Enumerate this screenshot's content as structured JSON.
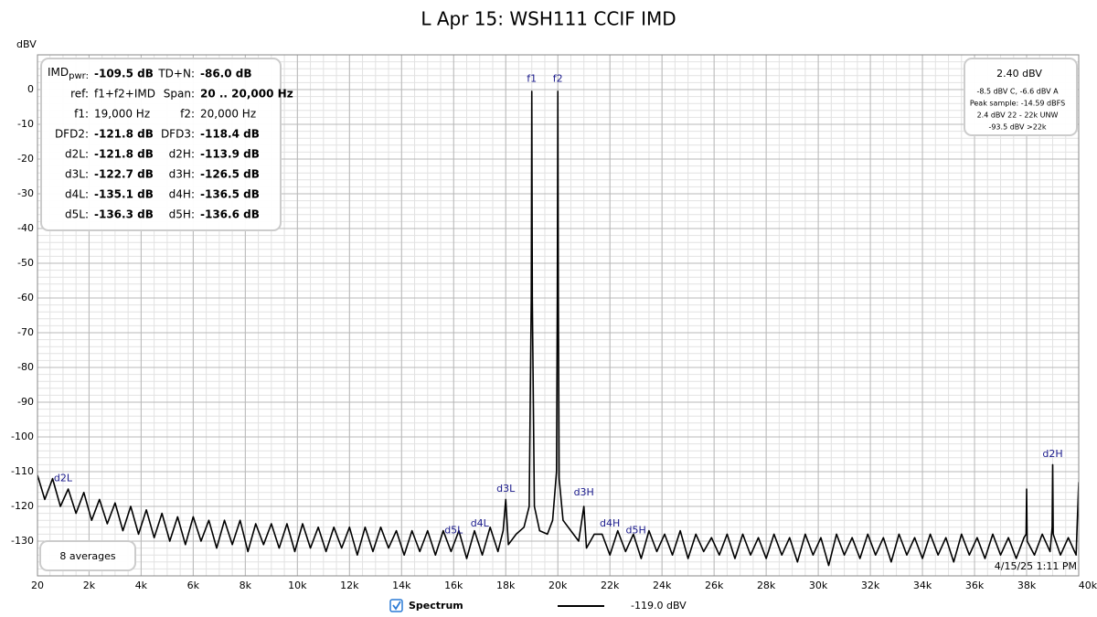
{
  "chart_data": {
    "type": "line",
    "title": "L Apr 15: WSH111 CCIF IMD",
    "y_label": "dBV",
    "xlim": [
      20,
      40000
    ],
    "ylim": [
      -140,
      10
    ],
    "xticks": [
      20,
      {
        "value": 2000,
        "label": "2k"
      },
      {
        "value": 4000,
        "label": "4k"
      },
      {
        "value": 6000,
        "label": "6k"
      },
      {
        "value": 8000,
        "label": "8k"
      },
      {
        "value": 10000,
        "label": "10k"
      },
      {
        "value": 12000,
        "label": "12k"
      },
      {
        "value": 14000,
        "label": "14k"
      },
      {
        "value": 16000,
        "label": "16k"
      },
      {
        "value": 18000,
        "label": "18k"
      },
      {
        "value": 20000,
        "label": "20k"
      },
      {
        "value": 22000,
        "label": "22k"
      },
      {
        "value": 24000,
        "label": "24k"
      },
      {
        "value": 26000,
        "label": "26k"
      },
      {
        "value": 28000,
        "label": "28k"
      },
      {
        "value": 30000,
        "label": "30k"
      },
      {
        "value": 32000,
        "label": "32k"
      },
      {
        "value": 34000,
        "label": "34k"
      },
      {
        "value": 36000,
        "label": "36k"
      },
      {
        "value": 38000,
        "label": "38k"
      },
      {
        "value": 40000,
        "label": "40kHz"
      }
    ],
    "yticks": [
      0,
      -10,
      -20,
      -30,
      -40,
      -50,
      -60,
      -70,
      -80,
      -90,
      -100,
      -110,
      -120,
      -130
    ],
    "grid": true,
    "minor_grid": {
      "x": 500,
      "y": 2
    },
    "x": [
      20,
      300,
      600,
      900,
      1200,
      1500,
      1800,
      2100,
      2400,
      2700,
      3000,
      3300,
      3600,
      3900,
      4200,
      4500,
      4800,
      5100,
      5400,
      5700,
      6000,
      6300,
      6600,
      6900,
      7200,
      7500,
      7800,
      8100,
      8400,
      8700,
      9000,
      9300,
      9600,
      9900,
      10200,
      10500,
      10800,
      11100,
      11400,
      11700,
      12000,
      12300,
      12600,
      12900,
      13200,
      13500,
      13800,
      14100,
      14400,
      14700,
      15000,
      15300,
      15600,
      15900,
      16200,
      16500,
      16800,
      17100,
      17400,
      17700,
      17900,
      18000,
      18100,
      18400,
      18700,
      18900,
      18980,
      19000,
      19020,
      19100,
      19300,
      19600,
      19800,
      19950,
      19980,
      20000,
      20020,
      20050,
      20200,
      20500,
      20800,
      21000,
      21100,
      21400,
      21700,
      22000,
      22300,
      22600,
      22900,
      23200,
      23500,
      23800,
      24100,
      24400,
      24700,
      25000,
      25300,
      25600,
      25900,
      26200,
      26500,
      26800,
      27100,
      27400,
      27700,
      28000,
      28300,
      28600,
      28900,
      29200,
      29500,
      29800,
      30100,
      30400,
      30700,
      31000,
      31300,
      31600,
      31900,
      32200,
      32500,
      32800,
      33100,
      33400,
      33700,
      34000,
      34300,
      34600,
      34900,
      35200,
      35500,
      35800,
      36100,
      36400,
      36700,
      37000,
      37300,
      37600,
      37900,
      37980,
      38000,
      38020,
      38300,
      38600,
      38900,
      38980,
      39000,
      39020,
      39300,
      39600,
      39900,
      40000
    ],
    "series": [
      {
        "name": "Spectrum",
        "color": "#000000",
        "values": [
          -111,
          -118,
          -112,
          -120,
          -115,
          -122,
          -116,
          -124,
          -118,
          -125,
          -119,
          -127,
          -120,
          -128,
          -121,
          -129,
          -122,
          -130,
          -123,
          -131,
          -123,
          -130,
          -124,
          -132,
          -124,
          -131,
          -124,
          -133,
          -125,
          -131,
          -125,
          -132,
          -125,
          -133,
          -125,
          -132,
          -126,
          -133,
          -126,
          -132,
          -126,
          -134,
          -126,
          -133,
          -126,
          -132,
          -127,
          -134,
          -127,
          -133,
          -127,
          -134,
          -127,
          -133,
          -127,
          -135,
          -127,
          -134,
          -126,
          -133,
          -127,
          -118,
          -131,
          -128,
          -126,
          -120,
          -60,
          -0.5,
          -60,
          -120,
          -127,
          -128,
          -124,
          -110,
          -60,
          -0.5,
          -60,
          -112,
          -124,
          -127,
          -130,
          -120,
          -132,
          -128,
          -128,
          -134,
          -127,
          -133,
          -128,
          -135,
          -127,
          -133,
          -128,
          -134,
          -127,
          -135,
          -128,
          -133,
          -129,
          -134,
          -128,
          -135,
          -128,
          -134,
          -129,
          -135,
          -128,
          -134,
          -129,
          -136,
          -128,
          -134,
          -129,
          -137,
          -128,
          -134,
          -129,
          -135,
          -128,
          -134,
          -129,
          -136,
          -128,
          -134,
          -129,
          -135,
          -128,
          -134,
          -129,
          -136,
          -128,
          -134,
          -129,
          -135,
          -128,
          -134,
          -129,
          -135,
          -129,
          -128,
          -115,
          -130,
          -134,
          -128,
          -133,
          -126,
          -108,
          -128,
          -134,
          -129,
          -134,
          -113
        ]
      }
    ],
    "annotations": [
      {
        "text": "f1",
        "x": 19000,
        "y": 3
      },
      {
        "text": "f2",
        "x": 20000,
        "y": 3
      },
      {
        "text": "d2L",
        "x": 1000,
        "y": -112
      },
      {
        "text": "d3L",
        "x": 18000,
        "y": -115
      },
      {
        "text": "d4L",
        "x": 17000,
        "y": -125
      },
      {
        "text": "d5L",
        "x": 16000,
        "y": -127
      },
      {
        "text": "d3H",
        "x": 21000,
        "y": -116
      },
      {
        "text": "d4H",
        "x": 22000,
        "y": -125
      },
      {
        "text": "d5H",
        "x": 23000,
        "y": -127
      },
      {
        "text": "d2H",
        "x": 39000,
        "y": -105
      }
    ],
    "stats": [
      {
        "label": "IMD",
        "label_sub": "pwr:",
        "value": "-109.5 dB"
      },
      {
        "label": "TD+N:",
        "value": "-86.0 dB"
      },
      {
        "label": "ref:",
        "value": "f1+f2+IMD"
      },
      {
        "label": "Span:",
        "value": "20 .. 20,000 Hz"
      },
      {
        "label": "f1:",
        "value": "19,000 Hz"
      },
      {
        "label": "f2:",
        "value": "20,000 Hz"
      },
      {
        "label": "DFD2:",
        "value": "-121.8 dB"
      },
      {
        "label": "DFD3:",
        "value": "-118.4 dB"
      },
      {
        "label": "d2L:",
        "value": "-121.8 dB"
      },
      {
        "label": "d2H:",
        "value": "-113.9 dB"
      },
      {
        "label": "d3L:",
        "value": "-122.7 dB"
      },
      {
        "label": "d3H:",
        "value": "-126.5 dB"
      },
      {
        "label": "d4L:",
        "value": "-135.1 dB"
      },
      {
        "label": "d4H:",
        "value": "-136.5 dB"
      },
      {
        "label": "d5L:",
        "value": "-136.3 dB"
      },
      {
        "label": "d5H:",
        "value": "-136.6 dB"
      }
    ],
    "level": {
      "value": "2.40 dBV",
      "lines": [
        "-8.5 dBV C, -6.6 dBV A",
        "Peak sample: -14.59 dBFS",
        "2.4 dBV 22 - 22k UNW",
        "-93.5 dBV >22k"
      ]
    },
    "averages": "8 averages",
    "timestamp": "4/15/25 1:11 PM",
    "legend_value": "-119.0 dBV"
  }
}
